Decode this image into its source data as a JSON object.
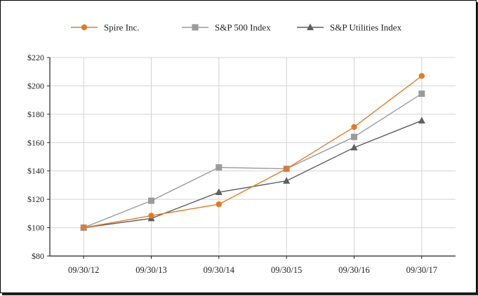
{
  "chart_data": {
    "type": "line",
    "categories": [
      "09/30/12",
      "09/30/13",
      "09/30/14",
      "09/30/15",
      "09/30/16",
      "09/30/17"
    ],
    "series": [
      {
        "name": "Spire Inc.",
        "color": "#e07b2a",
        "marker": "circle",
        "values": [
          100,
          108.5,
          116.5,
          141.5,
          171,
          207
        ]
      },
      {
        "name": "S&P 500 Index",
        "color": "#9b9b9b",
        "marker": "square",
        "values": [
          100,
          119,
          142.5,
          141.5,
          164,
          194.5
        ]
      },
      {
        "name": "S&P Utilities Index",
        "color": "#5f5f5f",
        "marker": "triangle",
        "values": [
          100,
          106.5,
          125,
          133,
          156.5,
          175.5
        ]
      }
    ],
    "ylim": [
      80,
      220
    ],
    "yticks": [
      80,
      100,
      120,
      140,
      160,
      180,
      200,
      220
    ],
    "ytick_labels": [
      "$80",
      "$100",
      "$120",
      "$140",
      "$160",
      "$180",
      "$200",
      "$220"
    ],
    "grid": true,
    "legend_position": "top"
  }
}
